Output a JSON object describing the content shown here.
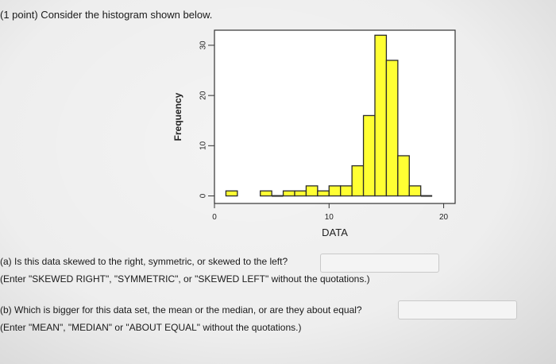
{
  "problem": {
    "header": "(1 point) Consider the histogram shown below."
  },
  "question_a": {
    "text": "(a) Is this data skewed to the right, symmetric, or skewed to the left?",
    "instructions": "(Enter \"SKEWED RIGHT\", \"SYMMETRIC\", or \"SKEWED LEFT\" without the quotations.)",
    "answer": ""
  },
  "question_b": {
    "text": "(b) Which is bigger for this data set, the mean or the median, or are they about equal?",
    "instructions": "(Enter \"MEAN\", \"MEDIAN\" or \"ABOUT EQUAL\" without the quotations.)",
    "answer": ""
  },
  "chart_data": {
    "type": "bar",
    "title": "",
    "xlabel": "DATA",
    "ylabel": "Frequency",
    "bar_color": "#ffff33",
    "edge_color": "#2a2a2a",
    "xlim": [
      0,
      21
    ],
    "ylim": [
      -1.5,
      33
    ],
    "xticks": [
      0,
      10,
      20
    ],
    "yticks": [
      0,
      10,
      20,
      30
    ],
    "bins": [
      {
        "x0": 1,
        "x1": 2,
        "count": 1
      },
      {
        "x0": 4,
        "x1": 5,
        "count": 1
      },
      {
        "x0": 5,
        "x1": 6,
        "count": 0
      },
      {
        "x0": 6,
        "x1": 7,
        "count": 1
      },
      {
        "x0": 7,
        "x1": 8,
        "count": 1
      },
      {
        "x0": 8,
        "x1": 9,
        "count": 2
      },
      {
        "x0": 9,
        "x1": 10,
        "count": 1
      },
      {
        "x0": 10,
        "x1": 11,
        "count": 2
      },
      {
        "x0": 11,
        "x1": 12,
        "count": 2
      },
      {
        "x0": 12,
        "x1": 13,
        "count": 6
      },
      {
        "x0": 13,
        "x1": 14,
        "count": 16
      },
      {
        "x0": 14,
        "x1": 15,
        "count": 32
      },
      {
        "x0": 15,
        "x1": 16,
        "count": 27
      },
      {
        "x0": 16,
        "x1": 17,
        "count": 8
      },
      {
        "x0": 17,
        "x1": 18,
        "count": 2
      },
      {
        "x0": 18,
        "x1": 19,
        "count": 0
      }
    ]
  }
}
